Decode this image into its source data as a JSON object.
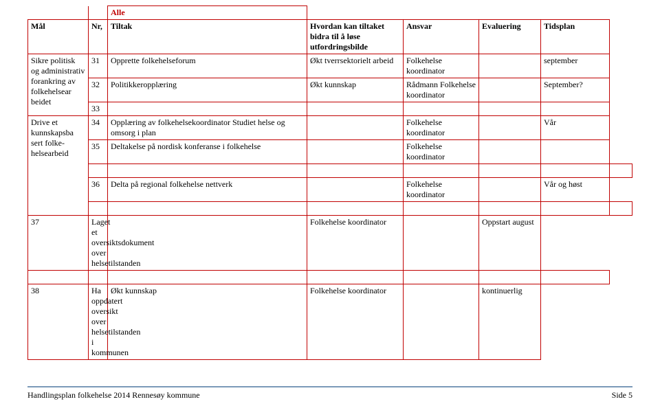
{
  "table": {
    "header": {
      "mal": "Mål",
      "nr": "Nr,",
      "alle": "Alle",
      "tiltak": "Tiltak",
      "hvordan": "Hvordan kan tiltaket bidra til å løse utfordringsbilde",
      "ansvar": "Ansvar",
      "evaluering": "Evaluering",
      "tidsplan": "Tidsplan"
    },
    "groups": [
      {
        "mal": "Sikre politisk og administrativ forankring av folkehelsear beidet",
        "rows": [
          {
            "nr": "31",
            "tiltak": "Opprette folkehelseforum",
            "hvordan": "Økt tverrsektorielt arbeid",
            "ansvar": "Folkehelse koordinator",
            "evaluering": "",
            "tidsplan": "september"
          },
          {
            "nr": "32",
            "tiltak": "Politikkeropplæring",
            "hvordan": "Økt kunnskap",
            "ansvar": "Rådmann Folkehelse koordinator",
            "evaluering": "",
            "tidsplan": "September?"
          },
          {
            "nr": "33",
            "tiltak": "",
            "hvordan": "",
            "ansvar": "",
            "evaluering": "",
            "tidsplan": ""
          }
        ]
      },
      {
        "mal": "Drive et kunnskapsba sert folke- helsearbeid",
        "rows": [
          {
            "nr": "34",
            "tiltak": "Opplæring av folkehelsekoordinator Studiet helse og omsorg i plan",
            "hvordan": "",
            "ansvar": "Folkehelse koordinator",
            "evaluering": "",
            "tidsplan": "Vår"
          },
          {
            "nr": "35",
            "tiltak": "Deltakelse på nordisk konferanse i folkehelse",
            "hvordan": "",
            "ansvar": "Folkehelse koordinator",
            "evaluering": "",
            "tidsplan": ""
          },
          {
            "nr": "36",
            "tiltak": "Delta på regional folkehelse nettverk",
            "hvordan": "",
            "ansvar": "Folkehelse koordinator",
            "evaluering": "",
            "tidsplan": "Vår og høst"
          },
          {
            "nr": "37",
            "tiltak": "Laget et oversiktsdokument over helsetilstanden",
            "hvordan": "",
            "ansvar": "Folkehelse koordinator",
            "evaluering": "",
            "tidsplan": "Oppstart august"
          },
          {
            "nr": "38",
            "tiltak": "Ha oppdatert oversikt over helsetilstanden i kommunen",
            "hvordan": "Økt kunnskap",
            "ansvar": "Folkehelse koordinator",
            "evaluering": "",
            "tidsplan": "kontinuerlig"
          }
        ]
      }
    ],
    "spacer_after_indices": [
      4,
      5,
      6
    ]
  },
  "footer": {
    "left": "Handlingsplan folkehelse 2014  Rennesøy kommune",
    "right": "Side 5"
  },
  "colors": {
    "border": "#c00000",
    "rule": "#7a99b8",
    "text": "#000000",
    "bg": "#ffffff"
  }
}
